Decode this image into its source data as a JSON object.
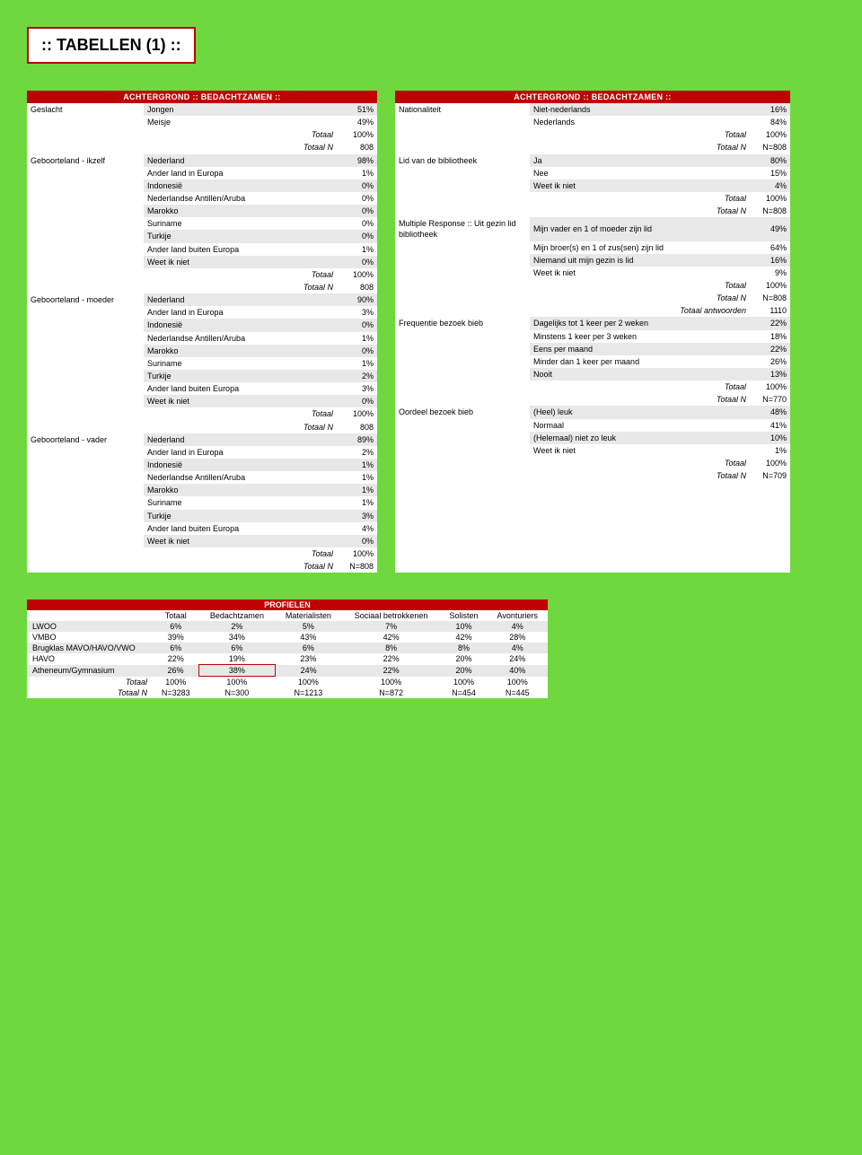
{
  "page_title": ":: TABELLEN (1) ::",
  "left_header": "ACHTERGROND :: BEDACHTZAMEN ::",
  "right_header": "ACHTERGROND :: BEDACHTZAMEN ::",
  "left": [
    {
      "cat": "Geslacht",
      "label": "Jongen",
      "val": "51%",
      "shade": 1
    },
    {
      "cat": "",
      "label": "Meisje",
      "val": "49%",
      "shade": 0
    },
    {
      "cat": "",
      "label": "Totaal",
      "val": "100%",
      "shade": 0,
      "it": 1
    },
    {
      "cat": "",
      "label": "Totaal N",
      "val": "808",
      "shade": 0,
      "it": 1
    },
    {
      "cat": "Geboorteland - ikzelf",
      "label": "Nederland",
      "val": "98%",
      "shade": 1
    },
    {
      "cat": "",
      "label": "Ander land in Europa",
      "val": "1%",
      "shade": 0
    },
    {
      "cat": "",
      "label": "Indonesië",
      "val": "0%",
      "shade": 1
    },
    {
      "cat": "",
      "label": "Nederlandse Antillen/Aruba",
      "val": "0%",
      "shade": 0
    },
    {
      "cat": "",
      "label": "Marokko",
      "val": "0%",
      "shade": 1
    },
    {
      "cat": "",
      "label": "Suriname",
      "val": "0%",
      "shade": 0
    },
    {
      "cat": "",
      "label": "Turkije",
      "val": "0%",
      "shade": 1
    },
    {
      "cat": "",
      "label": "Ander land buiten Europa",
      "val": "1%",
      "shade": 0
    },
    {
      "cat": "",
      "label": "Weet ik niet",
      "val": "0%",
      "shade": 1
    },
    {
      "cat": "",
      "label": "Totaal",
      "val": "100%",
      "shade": 0,
      "it": 1
    },
    {
      "cat": "",
      "label": "Totaal N",
      "val": "808",
      "shade": 0,
      "it": 1
    },
    {
      "cat": "Geboorteland - moeder",
      "label": "Nederland",
      "val": "90%",
      "shade": 1
    },
    {
      "cat": "",
      "label": "Ander land in Europa",
      "val": "3%",
      "shade": 0
    },
    {
      "cat": "",
      "label": "Indonesië",
      "val": "0%",
      "shade": 1
    },
    {
      "cat": "",
      "label": "Nederlandse Antillen/Aruba",
      "val": "1%",
      "shade": 0
    },
    {
      "cat": "",
      "label": "Marokko",
      "val": "0%",
      "shade": 1
    },
    {
      "cat": "",
      "label": "Suriname",
      "val": "1%",
      "shade": 0
    },
    {
      "cat": "",
      "label": "Turkije",
      "val": "2%",
      "shade": 1
    },
    {
      "cat": "",
      "label": "Ander land buiten Europa",
      "val": "3%",
      "shade": 0
    },
    {
      "cat": "",
      "label": "Weet ik niet",
      "val": "0%",
      "shade": 1
    },
    {
      "cat": "",
      "label": "Totaal",
      "val": "100%",
      "shade": 0,
      "it": 1
    },
    {
      "cat": "",
      "label": "Totaal N",
      "val": "808",
      "shade": 0,
      "it": 1
    },
    {
      "cat": "Geboorteland - vader",
      "label": "Nederland",
      "val": "89%",
      "shade": 1
    },
    {
      "cat": "",
      "label": "Ander land in Europa",
      "val": "2%",
      "shade": 0
    },
    {
      "cat": "",
      "label": "Indonesië",
      "val": "1%",
      "shade": 1
    },
    {
      "cat": "",
      "label": "Nederlandse Antillen/Aruba",
      "val": "1%",
      "shade": 0
    },
    {
      "cat": "",
      "label": "Marokko",
      "val": "1%",
      "shade": 1
    },
    {
      "cat": "",
      "label": "Suriname",
      "val": "1%",
      "shade": 0
    },
    {
      "cat": "",
      "label": "Turkije",
      "val": "3%",
      "shade": 1
    },
    {
      "cat": "",
      "label": "Ander land buiten Europa",
      "val": "4%",
      "shade": 0
    },
    {
      "cat": "",
      "label": "Weet ik niet",
      "val": "0%",
      "shade": 1
    },
    {
      "cat": "",
      "label": "Totaal",
      "val": "100%",
      "shade": 0,
      "it": 1
    },
    {
      "cat": "",
      "label": "Totaal N",
      "val": "N=808",
      "shade": 0,
      "it": 1
    }
  ],
  "right": [
    {
      "cat": "Nationaliteit",
      "label": "Niet-nederlands",
      "val": "16%",
      "shade": 1
    },
    {
      "cat": "",
      "label": "Nederlands",
      "val": "84%",
      "shade": 0
    },
    {
      "cat": "",
      "label": "Totaal",
      "val": "100%",
      "shade": 0,
      "it": 1
    },
    {
      "cat": "",
      "label": "Totaal N",
      "val": "N=808",
      "shade": 0,
      "it": 1
    },
    {
      "cat": "Lid van de bibliotheek",
      "label": "Ja",
      "val": "80%",
      "shade": 1
    },
    {
      "cat": "",
      "label": "Nee",
      "val": "15%",
      "shade": 0
    },
    {
      "cat": "",
      "label": "Weet ik niet",
      "val": "4%",
      "shade": 1
    },
    {
      "cat": "",
      "label": "Totaal",
      "val": "100%",
      "shade": 0,
      "it": 1
    },
    {
      "cat": "",
      "label": "Totaal N",
      "val": "N=808",
      "shade": 0,
      "it": 1
    },
    {
      "cat": "Multiple Response :: Uit gezin lid bibliotheek",
      "label": "Mijn vader en 1 of moeder zijn lid",
      "val": "49%",
      "shade": 1
    },
    {
      "cat": "",
      "label": "Mijn broer(s) en 1 of zus(sen) zijn lid",
      "val": "64%",
      "shade": 0
    },
    {
      "cat": "",
      "label": "Niemand uit mijn gezin is lid",
      "val": "16%",
      "shade": 1
    },
    {
      "cat": "",
      "label": "Weet ik niet",
      "val": "9%",
      "shade": 0
    },
    {
      "cat": "",
      "label": "Totaal",
      "val": "100%",
      "shade": 0,
      "it": 1
    },
    {
      "cat": "",
      "label": "Totaal N",
      "val": "N=808",
      "shade": 0,
      "it": 1
    },
    {
      "cat": "",
      "label": "Totaal antwoorden",
      "val": "1110",
      "shade": 0,
      "it": 1
    },
    {
      "cat": "Frequentie bezoek bieb",
      "label": "Dagelijks tot 1 keer per 2 weken",
      "val": "22%",
      "shade": 1
    },
    {
      "cat": "",
      "label": "Minstens 1 keer per 3 weken",
      "val": "18%",
      "shade": 0
    },
    {
      "cat": "",
      "label": "Eens per maand",
      "val": "22%",
      "shade": 1
    },
    {
      "cat": "",
      "label": "Minder dan 1 keer per maand",
      "val": "26%",
      "shade": 0
    },
    {
      "cat": "",
      "label": "Nooit",
      "val": "13%",
      "shade": 1
    },
    {
      "cat": "",
      "label": "Totaal",
      "val": "100%",
      "shade": 0,
      "it": 1
    },
    {
      "cat": "",
      "label": "Totaal N",
      "val": "N=770",
      "shade": 0,
      "it": 1
    },
    {
      "cat": "Oordeel bezoek bieb",
      "label": "(Heel) leuk",
      "val": "48%",
      "shade": 1
    },
    {
      "cat": "",
      "label": "Normaal",
      "val": "41%",
      "shade": 0
    },
    {
      "cat": "",
      "label": "(Helemaal) niet zo leuk",
      "val": "10%",
      "shade": 1
    },
    {
      "cat": "",
      "label": "Weet ik niet",
      "val": "1%",
      "shade": 0
    },
    {
      "cat": "",
      "label": "Totaal",
      "val": "100%",
      "shade": 0,
      "it": 1
    },
    {
      "cat": "",
      "label": "Totaal N",
      "val": "N=709",
      "shade": 0,
      "it": 1
    }
  ],
  "profielen_title": "PROFIELEN",
  "profielen_cols": [
    "",
    "Totaal",
    "Bedachtzamen",
    "Materialisten",
    "Sociaal betrokkenen",
    "Solisten",
    "Avonturiers"
  ],
  "profielen_rows": [
    {
      "label": "LWOO",
      "cells": [
        "6%",
        "2%",
        "5%",
        "7%",
        "10%",
        "4%"
      ],
      "shade": 1
    },
    {
      "label": "VMBO",
      "cells": [
        "39%",
        "34%",
        "43%",
        "42%",
        "42%",
        "28%"
      ],
      "shade": 0
    },
    {
      "label": "Brugklas MAVO/HAVO/VWO",
      "cells": [
        "6%",
        "6%",
        "6%",
        "8%",
        "8%",
        "4%"
      ],
      "shade": 1
    },
    {
      "label": "HAVO",
      "cells": [
        "22%",
        "19%",
        "23%",
        "22%",
        "20%",
        "24%"
      ],
      "shade": 0
    },
    {
      "label": "Atheneum/Gymnasium",
      "cells": [
        "26%",
        "38%",
        "24%",
        "22%",
        "20%",
        "40%"
      ],
      "shade": 1,
      "hl": 1
    },
    {
      "label": "Totaal",
      "cells": [
        "100%",
        "100%",
        "100%",
        "100%",
        "100%",
        "100%"
      ],
      "shade": 0,
      "it": 1
    },
    {
      "label": "Totaal N",
      "cells": [
        "N=3283",
        "N=300",
        "N=1213",
        "N=872",
        "N=454",
        "N=445"
      ],
      "shade": 0,
      "it": 1
    }
  ]
}
